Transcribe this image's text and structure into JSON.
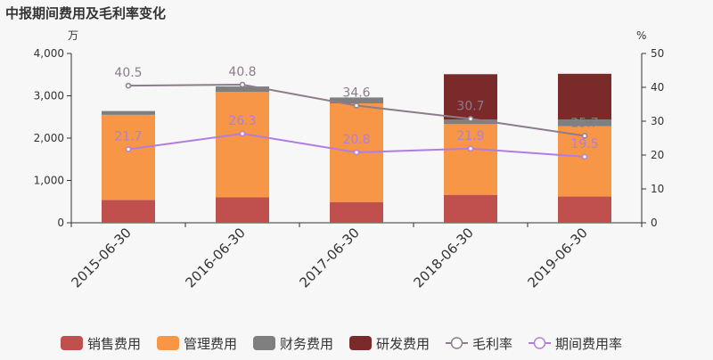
{
  "chart_data": {
    "type": "bar",
    "title": "中报期间费用及毛利率变化",
    "left_unit": "万",
    "right_unit": "%",
    "categories": [
      "2015-06-30",
      "2016-06-30",
      "2017-06-30",
      "2018-06-30",
      "2019-06-30"
    ],
    "left_axis": {
      "min": 0,
      "max": 4000,
      "ticks": [
        "0",
        "1,000",
        "2,000",
        "3,000",
        "4,000"
      ],
      "tick_values": [
        0,
        1000,
        2000,
        3000,
        4000
      ]
    },
    "right_axis": {
      "min": 0,
      "max": 50,
      "ticks": [
        "0",
        "10",
        "20",
        "30",
        "40",
        "50"
      ],
      "tick_values": [
        0,
        10,
        20,
        30,
        40,
        50
      ]
    },
    "stacked": true,
    "series": [
      {
        "name": "销售费用",
        "kind": "bar",
        "axis": "left",
        "color": "#c0504d",
        "values": [
          540,
          600,
          490,
          660,
          620
        ]
      },
      {
        "name": "管理费用",
        "kind": "bar",
        "axis": "left",
        "color": "#f79646",
        "values": [
          2010,
          2490,
          2330,
          1670,
          1660
        ]
      },
      {
        "name": "财务费用",
        "kind": "bar",
        "axis": "left",
        "color": "#7f7f7f",
        "values": [
          90,
          130,
          140,
          110,
          160
        ]
      },
      {
        "name": "研发费用",
        "kind": "bar",
        "axis": "left",
        "color": "#7b2a2a",
        "values": [
          0,
          0,
          0,
          1070,
          1080
        ]
      },
      {
        "name": "毛利率",
        "kind": "line",
        "axis": "right",
        "color": "#8c7c8c",
        "values": [
          40.5,
          40.8,
          34.6,
          30.7,
          25.7
        ],
        "labels": [
          "40.5",
          "40.8",
          "34.6",
          "30.7",
          "25.7"
        ],
        "label_color": "#8c7c8c"
      },
      {
        "name": "期间费用率",
        "kind": "line",
        "axis": "right",
        "color": "#b07ee0",
        "values": [
          21.7,
          26.3,
          20.8,
          21.9,
          19.5
        ],
        "labels": [
          "21.7",
          "26.3",
          "20.8",
          "21.9",
          "19.5"
        ],
        "label_color": "#b07ee0"
      }
    ],
    "grid": false,
    "legend_position": "bottom"
  }
}
